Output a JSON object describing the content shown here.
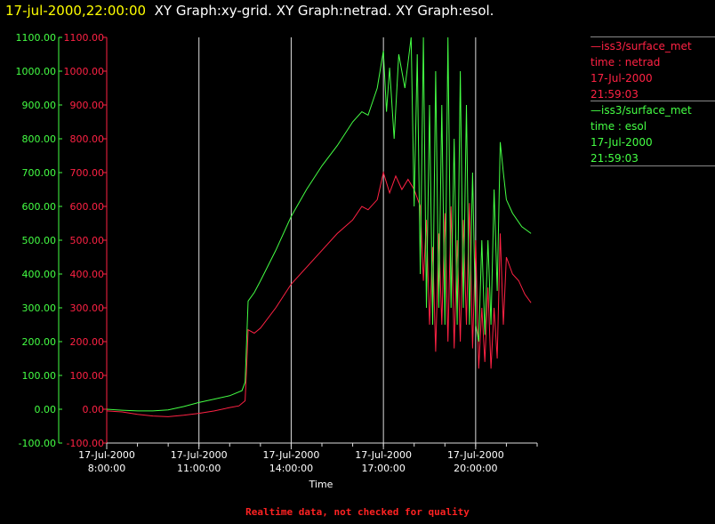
{
  "header": {
    "timestamp": "17-jul-2000,22:00:00",
    "graphs": "XY Graph:xy-grid.  XY Graph:netrad.  XY Graph:esol."
  },
  "legend": [
    {
      "line1": "—iss3/surface_met",
      "line2": "time : netrad",
      "line3": "17-Jul-2000",
      "line4": "21:59:03",
      "color": "#ff2244"
    },
    {
      "line1": "—iss3/surface_met",
      "line2": "time : esol",
      "line3": "17-Jul-2000",
      "line4": "21:59:03",
      "color": "#44ff44"
    }
  ],
  "footer": "Realtime data, not checked for quality",
  "chart_data": {
    "type": "line",
    "xlabel": "Time",
    "x_ticks": [
      {
        "value": 8,
        "line1": "17-Jul-2000",
        "line2": "8:00:00"
      },
      {
        "value": 11,
        "line1": "17-Jul-2000",
        "line2": "11:00:00"
      },
      {
        "value": 14,
        "line1": "17-Jul-2000",
        "line2": "14:00:00"
      },
      {
        "value": 17,
        "line1": "17-Jul-2000",
        "line2": "17:00:00"
      },
      {
        "value": 20,
        "line1": "17-Jul-2000",
        "line2": "20:00:00"
      }
    ],
    "xlim": [
      8,
      22
    ],
    "ylim": [
      -100,
      1100
    ],
    "y_ticks": [
      "-100.00",
      "0.00",
      "100.00",
      "200.00",
      "300.00",
      "400.00",
      "500.00",
      "600.00",
      "700.00",
      "800.00",
      "900.00",
      "1000.00",
      "1100.00"
    ],
    "vertical_grid": [
      11,
      14,
      17,
      20
    ],
    "series": [
      {
        "name": "netrad",
        "color": "#ff2244",
        "points": [
          [
            8.0,
            -5
          ],
          [
            8.5,
            -8
          ],
          [
            9.0,
            -15
          ],
          [
            9.5,
            -20
          ],
          [
            10.0,
            -22
          ],
          [
            10.5,
            -18
          ],
          [
            11.0,
            -12
          ],
          [
            11.5,
            -5
          ],
          [
            12.0,
            5
          ],
          [
            12.3,
            10
          ],
          [
            12.5,
            25
          ],
          [
            12.55,
            120
          ],
          [
            12.6,
            235
          ],
          [
            12.8,
            225
          ],
          [
            13.0,
            240
          ],
          [
            13.5,
            300
          ],
          [
            14.0,
            370
          ],
          [
            14.5,
            420
          ],
          [
            15.0,
            470
          ],
          [
            15.5,
            520
          ],
          [
            16.0,
            560
          ],
          [
            16.3,
            600
          ],
          [
            16.5,
            590
          ],
          [
            16.8,
            620
          ],
          [
            17.0,
            700
          ],
          [
            17.2,
            640
          ],
          [
            17.4,
            690
          ],
          [
            17.6,
            650
          ],
          [
            17.8,
            680
          ],
          [
            18.0,
            650
          ],
          [
            18.2,
            600
          ],
          [
            18.3,
            380
          ],
          [
            18.4,
            560
          ],
          [
            18.5,
            250
          ],
          [
            18.6,
            480
          ],
          [
            18.7,
            170
          ],
          [
            18.8,
            520
          ],
          [
            18.9,
            250
          ],
          [
            19.0,
            580
          ],
          [
            19.1,
            200
          ],
          [
            19.2,
            600
          ],
          [
            19.3,
            180
          ],
          [
            19.4,
            500
          ],
          [
            19.5,
            200
          ],
          [
            19.6,
            560
          ],
          [
            19.7,
            250
          ],
          [
            19.8,
            610
          ],
          [
            19.9,
            180
          ],
          [
            20.0,
            500
          ],
          [
            20.1,
            120
          ],
          [
            20.2,
            300
          ],
          [
            20.3,
            140
          ],
          [
            20.4,
            360
          ],
          [
            20.5,
            120
          ],
          [
            20.6,
            300
          ],
          [
            20.7,
            150
          ],
          [
            20.8,
            520
          ],
          [
            20.9,
            250
          ],
          [
            21.0,
            450
          ],
          [
            21.2,
            400
          ],
          [
            21.4,
            380
          ],
          [
            21.6,
            340
          ],
          [
            21.8,
            315
          ]
        ]
      },
      {
        "name": "esol",
        "color": "#44ff44",
        "points": [
          [
            8.0,
            0
          ],
          [
            8.5,
            -3
          ],
          [
            9.0,
            -5
          ],
          [
            9.5,
            -5
          ],
          [
            10.0,
            -2
          ],
          [
            10.5,
            8
          ],
          [
            11.0,
            20
          ],
          [
            11.5,
            30
          ],
          [
            12.0,
            40
          ],
          [
            12.4,
            55
          ],
          [
            12.5,
            80
          ],
          [
            12.55,
            200
          ],
          [
            12.6,
            320
          ],
          [
            12.8,
            345
          ],
          [
            13.0,
            380
          ],
          [
            13.5,
            470
          ],
          [
            14.0,
            570
          ],
          [
            14.5,
            650
          ],
          [
            15.0,
            720
          ],
          [
            15.5,
            780
          ],
          [
            16.0,
            850
          ],
          [
            16.3,
            880
          ],
          [
            16.5,
            870
          ],
          [
            16.8,
            950
          ],
          [
            17.0,
            1060
          ],
          [
            17.1,
            880
          ],
          [
            17.2,
            1010
          ],
          [
            17.35,
            800
          ],
          [
            17.5,
            1050
          ],
          [
            17.7,
            950
          ],
          [
            17.9,
            1100
          ],
          [
            18.0,
            600
          ],
          [
            18.1,
            1050
          ],
          [
            18.2,
            400
          ],
          [
            18.3,
            1100
          ],
          [
            18.4,
            300
          ],
          [
            18.5,
            900
          ],
          [
            18.6,
            250
          ],
          [
            18.7,
            1000
          ],
          [
            18.8,
            300
          ],
          [
            18.9,
            900
          ],
          [
            19.0,
            250
          ],
          [
            19.1,
            1100
          ],
          [
            19.2,
            300
          ],
          [
            19.3,
            800
          ],
          [
            19.4,
            250
          ],
          [
            19.5,
            1000
          ],
          [
            19.6,
            300
          ],
          [
            19.7,
            900
          ],
          [
            19.8,
            250
          ],
          [
            19.9,
            700
          ],
          [
            20.0,
            250
          ],
          [
            20.1,
            200
          ],
          [
            20.2,
            500
          ],
          [
            20.3,
            220
          ],
          [
            20.4,
            500
          ],
          [
            20.5,
            250
          ],
          [
            20.6,
            650
          ],
          [
            20.7,
            350
          ],
          [
            20.8,
            790
          ],
          [
            20.9,
            700
          ],
          [
            21.0,
            620
          ],
          [
            21.2,
            580
          ],
          [
            21.5,
            540
          ],
          [
            21.8,
            520
          ]
        ]
      }
    ]
  }
}
